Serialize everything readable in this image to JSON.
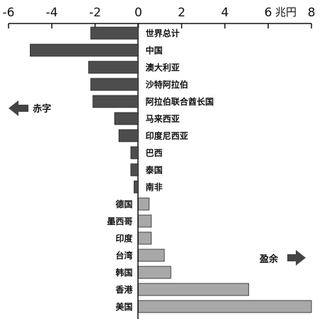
{
  "chart_data": {
    "type": "bar",
    "orientation": "horizontal",
    "unit_label": "兆円",
    "xlim": [
      -6,
      8
    ],
    "xticks": [
      -6,
      -4,
      -2,
      0,
      2,
      4,
      6,
      8
    ],
    "categories": [
      "世界总计",
      "中国",
      "澳大利亚",
      "沙特阿拉伯",
      "阿拉伯联合酋长国",
      "马来西亚",
      "印度尼西亚",
      "巴西",
      "泰国",
      "南非",
      "德国",
      "墨西哥",
      "印度",
      "台湾",
      "韩国",
      "香港",
      "美国"
    ],
    "values": [
      -2.2,
      -5.0,
      -2.3,
      -2.2,
      -2.1,
      -1.1,
      -0.9,
      -0.35,
      -0.35,
      -0.2,
      0.5,
      0.6,
      0.6,
      1.2,
      1.5,
      5.1,
      8.0
    ],
    "colors": {
      "deficit": "#4d4d4d",
      "surplus": "#a8a8a8"
    },
    "annotations": {
      "deficit": "赤字",
      "surplus": "盈余"
    },
    "grid": false,
    "legend": "none"
  }
}
